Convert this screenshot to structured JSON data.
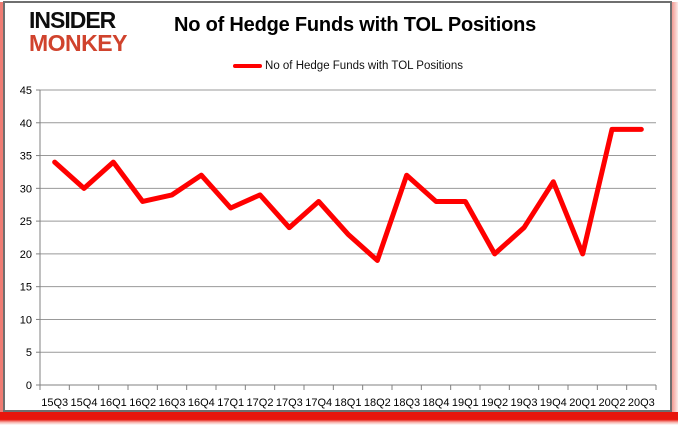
{
  "logo": {
    "line1": "INSIDER",
    "line2": "MONKEY"
  },
  "chart_data": {
    "type": "line",
    "title": "No of Hedge Funds with TOL Positions",
    "categories": [
      "15Q3",
      "15Q4",
      "16Q1",
      "16Q2",
      "16Q3",
      "16Q4",
      "17Q1",
      "17Q2",
      "17Q3",
      "17Q4",
      "18Q1",
      "18Q2",
      "18Q3",
      "18Q4",
      "19Q1",
      "19Q2",
      "19Q3",
      "19Q4",
      "20Q1",
      "20Q2",
      "20Q3"
    ],
    "series": [
      {
        "name": "No of Hedge Funds with TOL Positions",
        "color": "#ff0000",
        "values": [
          34,
          30,
          34,
          28,
          29,
          32,
          27,
          29,
          24,
          28,
          23,
          19,
          32,
          28,
          28,
          20,
          24,
          31,
          20,
          39,
          39
        ]
      }
    ],
    "ylim": [
      0,
      45
    ],
    "ytick_step": 5,
    "xlabel": "",
    "ylabel": "",
    "grid": "horizontal",
    "legend_position": "top"
  },
  "colors": {
    "series_red": "#ff0000",
    "logo_red": "#d0432d",
    "gridline_grey": "#999999",
    "axis_grey": "#808080",
    "bottom_bar_red": "#e8160c",
    "text_black": "#000000"
  }
}
